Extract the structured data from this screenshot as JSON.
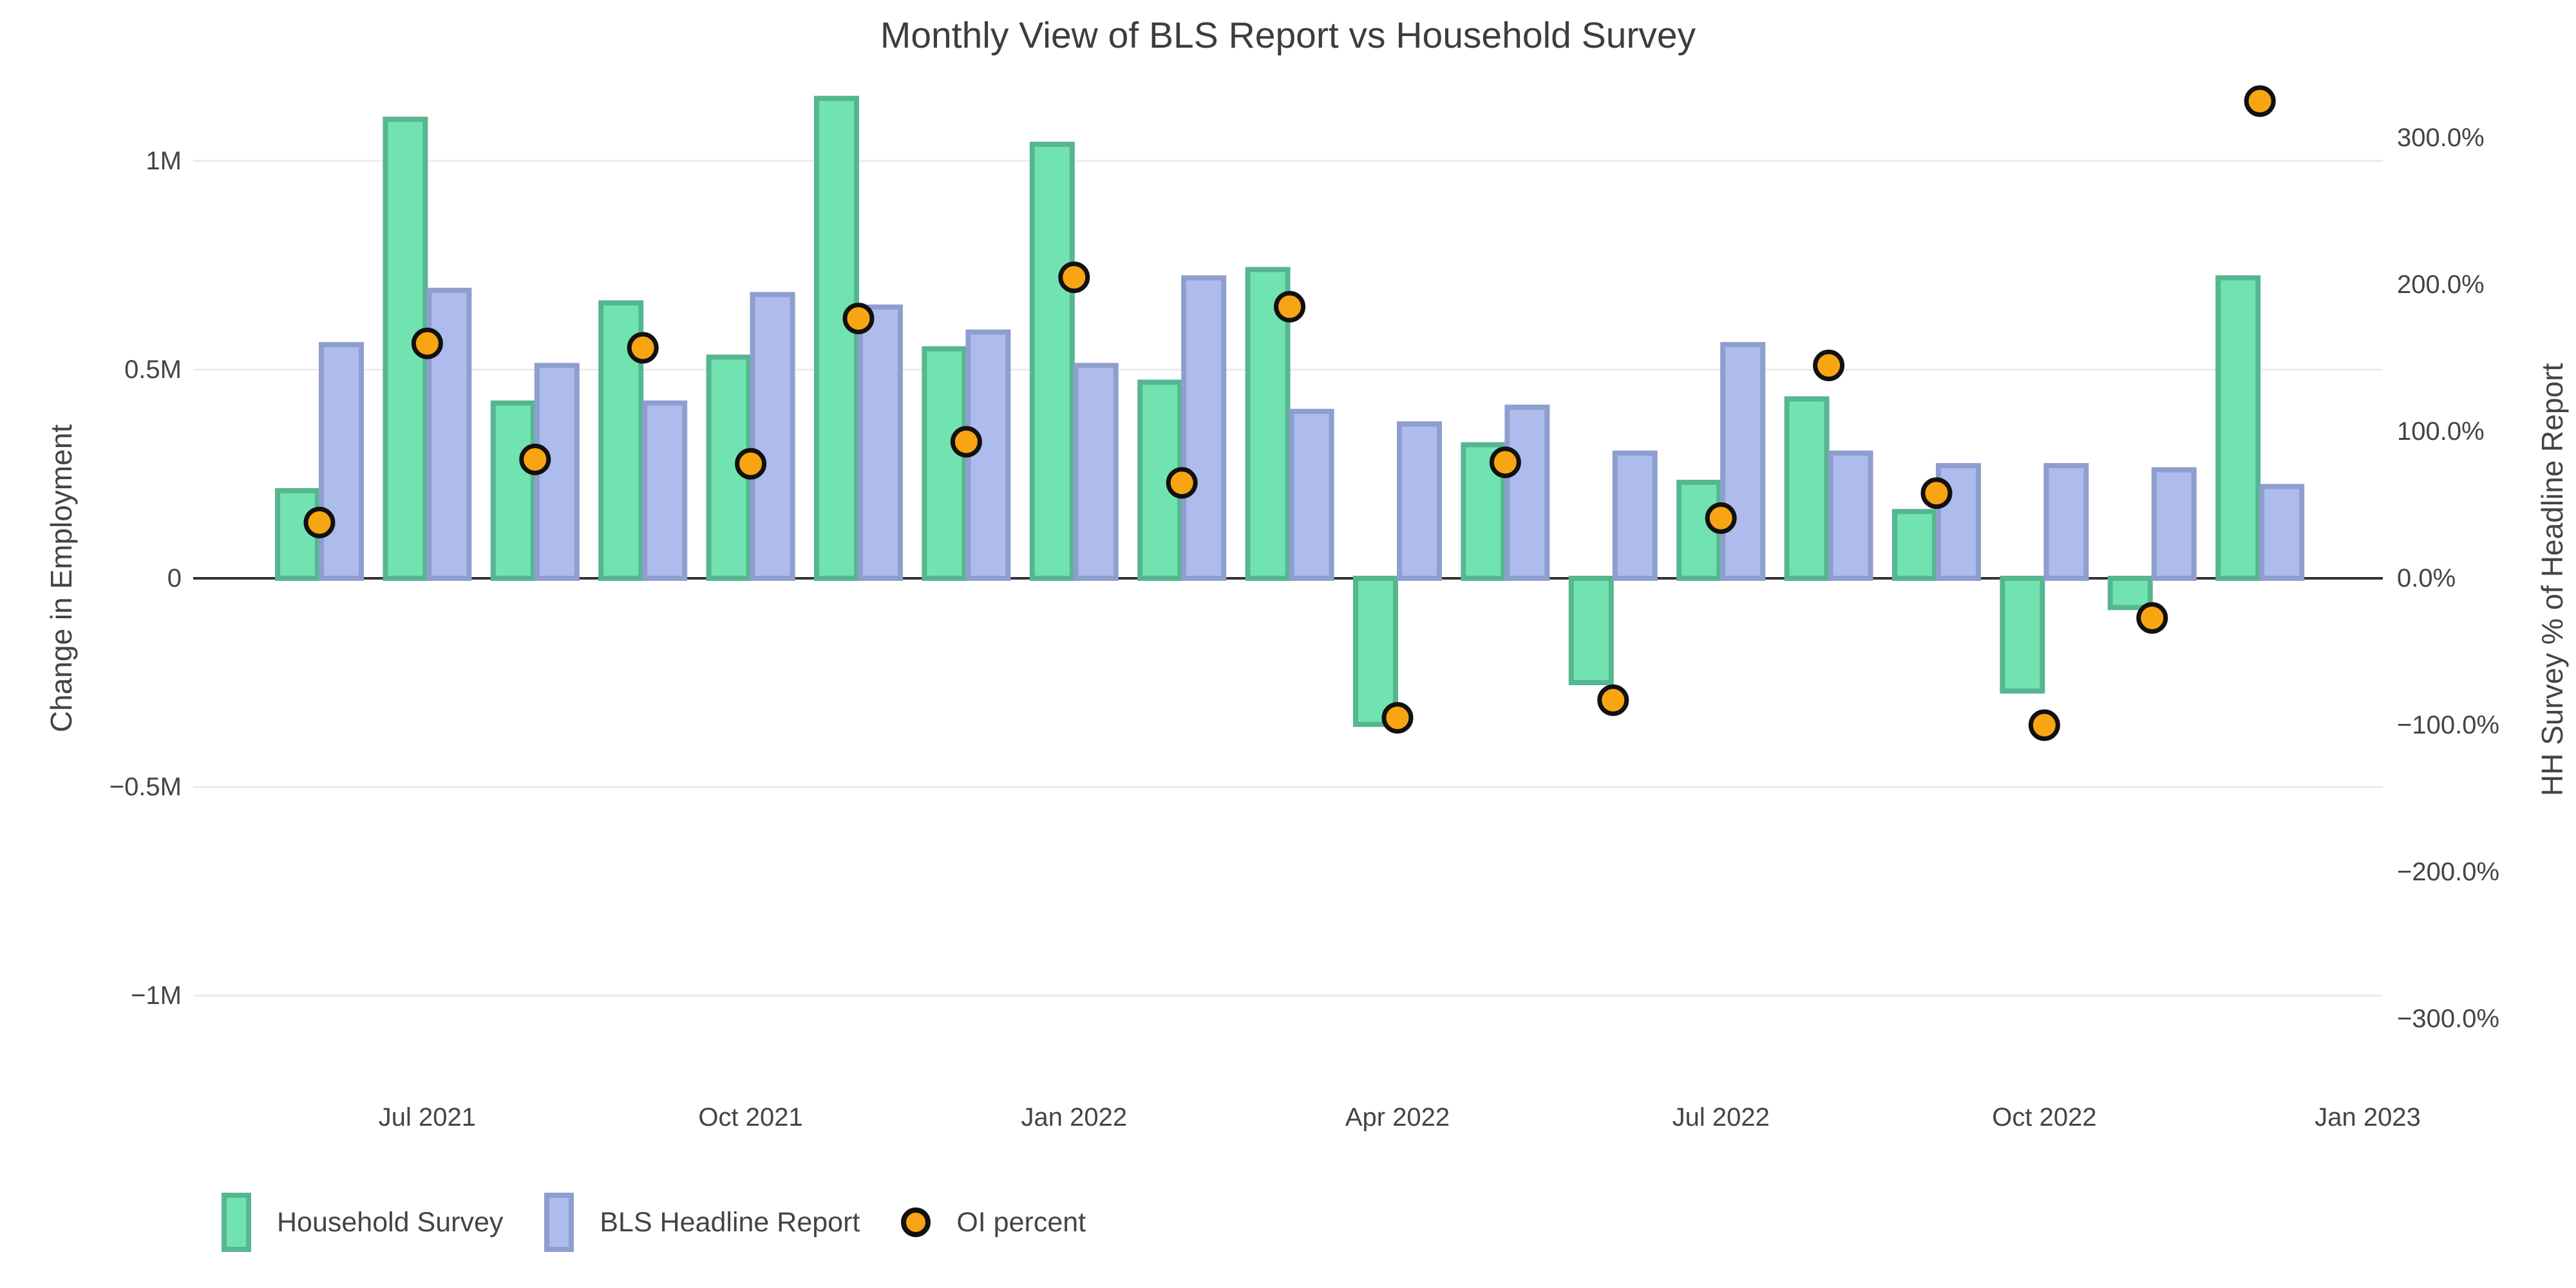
{
  "title": "Monthly View of BLS Report vs Household Survey",
  "y_axis": {
    "title": "Change in Employment",
    "tick_labels": [
      "1M",
      "0.5M",
      "0",
      "−0.5M",
      "−1M"
    ],
    "tick_values": [
      1,
      0.5,
      0,
      -0.5,
      -1
    ]
  },
  "y2_axis": {
    "title": "HH Survey % of Headline Report",
    "tick_labels": [
      "300.0%",
      "200.0%",
      "100.0%",
      "0.0%",
      "−100.0%",
      "−200.0%",
      "−300.0%"
    ],
    "tick_values": [
      300,
      200,
      100,
      0,
      -100,
      -200,
      -300
    ]
  },
  "x_axis": {
    "tick_labels": [
      "Jul 2021",
      "Oct 2021",
      "Jan 2022",
      "Apr 2022",
      "Jul 2022",
      "Oct 2022",
      "Jan 2023"
    ],
    "tick_positions": [
      1,
      4,
      7,
      10,
      13,
      16,
      19
    ]
  },
  "legend": {
    "items": [
      {
        "label": "Household Survey",
        "marker": "bar-swatch",
        "color": "#71E3B0",
        "border": "#56B690"
      },
      {
        "label": "BLS Headline Report",
        "marker": "bar-swatch",
        "color": "#ADBCEC",
        "border": "#8E9ECF"
      },
      {
        "label": "OI percent",
        "marker": "circle",
        "color": "#F7A512",
        "border": "#111111"
      }
    ]
  },
  "colors": {
    "background": "#FFFFFF",
    "gridline": "#EBEBEB",
    "zero_line": "#333333",
    "text": "#444444",
    "household_fill": "#71E3B0",
    "household_border": "#56B690",
    "bls_fill": "#ADBCEC",
    "bls_border": "#8E9ECF",
    "oi_fill": "#F7A512",
    "oi_border": "#111111"
  },
  "chart_data": {
    "type": "bar+scatter",
    "title": "Monthly View of BLS Report vs Household Survey",
    "categories": [
      "Jun 2021",
      "Jul 2021",
      "Aug 2021",
      "Sep 2021",
      "Oct 2021",
      "Nov 2021",
      "Dec 2021",
      "Jan 2022",
      "Feb 2022",
      "Mar 2022",
      "Apr 2022",
      "May 2022",
      "Jun 2022",
      "Jul 2022",
      "Aug 2022",
      "Sep 2022",
      "Oct 2022",
      "Nov 2022",
      "Dec 2022"
    ],
    "series": [
      {
        "name": "Household Survey",
        "type": "bar",
        "axis": "left",
        "units": "millions",
        "values": [
          0.21,
          1.1,
          0.42,
          0.66,
          0.53,
          1.15,
          0.55,
          1.04,
          0.47,
          0.74,
          -0.35,
          0.32,
          -0.25,
          0.23,
          0.43,
          0.16,
          -0.27,
          -0.07,
          0.72
        ]
      },
      {
        "name": "BLS Headline Report",
        "type": "bar",
        "axis": "left",
        "units": "millions",
        "values": [
          0.56,
          0.69,
          0.51,
          0.42,
          0.68,
          0.65,
          0.59,
          0.51,
          0.72,
          0.4,
          0.37,
          0.41,
          0.3,
          0.56,
          0.3,
          0.27,
          0.27,
          0.26,
          0.22
        ]
      },
      {
        "name": "OI percent",
        "type": "scatter",
        "axis": "right",
        "units": "percent",
        "values": [
          38,
          160,
          81,
          157,
          78,
          177,
          93,
          205,
          65,
          185,
          -95,
          79,
          -83,
          41,
          145,
          58,
          -100,
          -27,
          325
        ]
      }
    ],
    "xlabel": "",
    "ylabel": "Change in Employment",
    "y2label": "HH Survey % of Headline Report",
    "ylim": [
      -1.2,
      1.25
    ],
    "y2lim": [
      -350,
      365
    ],
    "grid": true,
    "legend_position": "bottom-left"
  }
}
